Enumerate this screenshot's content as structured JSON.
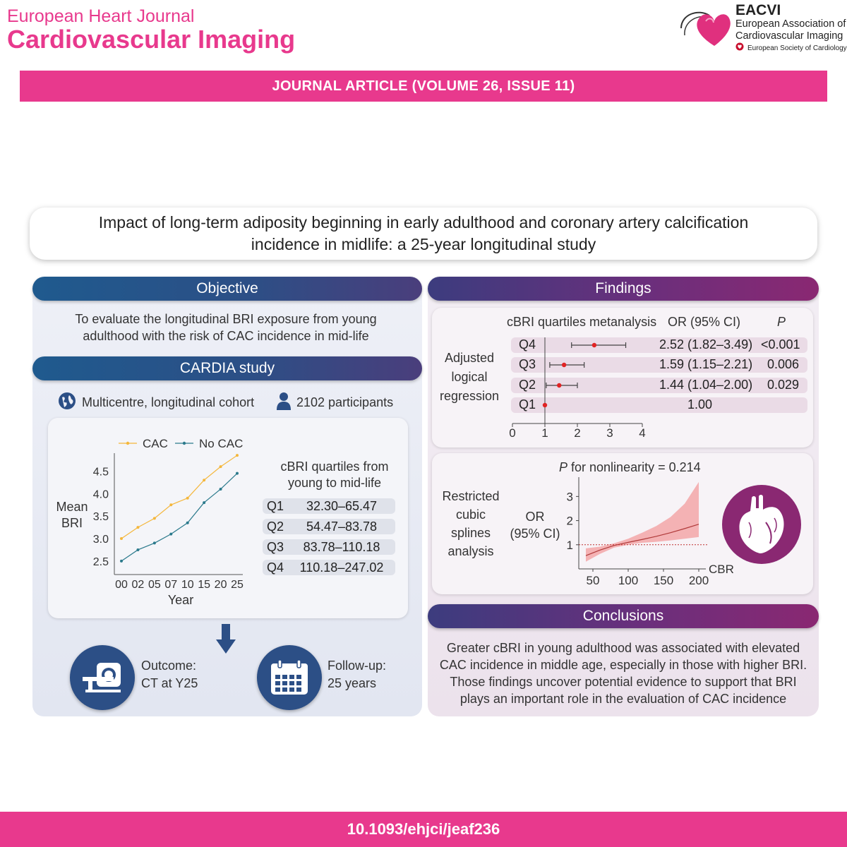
{
  "header": {
    "journal_name": "European Heart Journal",
    "journal_title": "Cardiovascular Imaging",
    "society_abbr": "EACVI",
    "society_name_line1": "European Association of",
    "society_name_line2": "Cardiovascular Imaging",
    "esc_name": "European Society of Cardiology",
    "banner": "JOURNAL ARTICLE (VOLUME 26, ISSUE 11)"
  },
  "title": {
    "line1": "Impact of long-term adiposity beginning in early adulthood and coronary artery calcification",
    "line2": "incidence in midlife: a 25-year longitudinal study"
  },
  "objective": {
    "heading": "Objective",
    "text_line1": "To evaluate the longitudinal BRI exposure from young",
    "text_line2": "adulthood with the risk of CAC incidence in mid-life"
  },
  "cardia": {
    "heading": "CARDIA study",
    "design": "Multicentre, longitudinal cohort",
    "participants": "2102 participants",
    "quartiles_heading_line1": "cBRI quartiles from",
    "quartiles_heading_line2": "young to mid-life",
    "quartiles": [
      {
        "q": "Q1",
        "range": "32.30–65.47"
      },
      {
        "q": "Q2",
        "range": "54.47–83.78"
      },
      {
        "q": "Q3",
        "range": "83.78–110.18"
      },
      {
        "q": "Q4",
        "range": "110.18–247.02"
      }
    ],
    "outcome_line1": "Outcome:",
    "outcome_line2": "CT at Y25",
    "followup_line1": "Follow-up:",
    "followup_line2": "25 years"
  },
  "findings": {
    "heading": "Findings",
    "forest_header": "cBRI quartiles metanalysis",
    "or_header": "OR (95% CI)",
    "p_header": "P",
    "section_label": [
      "Adjusted",
      "logical",
      "regression"
    ],
    "rows": [
      {
        "q": "Q4",
        "or_text": "2.52 (1.82–3.49)",
        "p": "<0.001"
      },
      {
        "q": "Q3",
        "or_text": "1.59 (1.15–2.21)",
        "p": "0.006"
      },
      {
        "q": "Q2",
        "or_text": "1.44 (1.04–2.00)",
        "p": "0.029"
      },
      {
        "q": "Q1",
        "or_text": "1.00",
        "p": ""
      }
    ],
    "spline_p_prefix": "P",
    "spline_p_text": " for nonlinearity = 0.214",
    "spline_label": [
      "Restricted",
      "cubic",
      "splines",
      "analysis"
    ],
    "spline_ylabel_line1": "OR",
    "spline_ylabel_line2": "(95% CI)",
    "spline_xlabel": "CBRI"
  },
  "conclusions": {
    "heading": "Conclusions",
    "line1": "Greater cBRI in young adulthood was associated with elevated",
    "line2": "CAC incidence in middle age, especially in those with higher BRI.",
    "line3": "Those findings uncover potential evidence to support that BRI",
    "line4": "plays an important role in the evaluation of CAC incidence"
  },
  "doi": "10.1093/ehjci/jeaf236",
  "colors": {
    "brand_pink": "#e8398d",
    "blue_bar": "#2c4f86",
    "purple_bar": "#8a2872",
    "cac_series": "#f4b73c",
    "nocac_series": "#2b7a8c",
    "forest_point": "#e02424",
    "spline_band": "#f3a6a8"
  },
  "chart_data": [
    {
      "type": "line",
      "x": [
        "00",
        "02",
        "05",
        "07",
        "10",
        "15",
        "20",
        "25"
      ],
      "xlabel": "Year",
      "ylabel": "Mean BRI",
      "ylim": [
        2.2,
        4.9
      ],
      "yticks": [
        "2.5",
        "3.0",
        "3.5",
        "4.0",
        "4.5"
      ],
      "legend": "top",
      "series": [
        {
          "name": "CAC",
          "values": [
            3.0,
            3.25,
            3.45,
            3.75,
            3.9,
            4.3,
            4.6,
            4.85
          ]
        },
        {
          "name": "No CAC",
          "values": [
            2.5,
            2.75,
            2.9,
            3.1,
            3.35,
            3.8,
            4.1,
            4.45
          ]
        }
      ]
    },
    {
      "type": "scatter",
      "title": "cBRI quartiles metanalysis",
      "categories": [
        "Q4",
        "Q3",
        "Q2",
        "Q1"
      ],
      "values": [
        2.52,
        1.59,
        1.44,
        1.0
      ],
      "ci_low": [
        1.82,
        1.15,
        1.04,
        1.0
      ],
      "ci_high": [
        3.49,
        2.21,
        2.0,
        1.0
      ],
      "xlim": [
        0,
        4
      ],
      "xticks": [
        "0",
        "1",
        "2",
        "3",
        "4"
      ]
    },
    {
      "type": "area",
      "title": "P for nonlinearity = 0.214",
      "xlabel": "CBRI",
      "ylabel": "OR (95% CI)",
      "xlim": [
        30,
        210
      ],
      "ylim": [
        0,
        3.8
      ],
      "xticks": [
        "50",
        "100",
        "150",
        "200"
      ],
      "yticks": [
        "1",
        "2",
        "3"
      ],
      "x": [
        40,
        60,
        80,
        100,
        120,
        140,
        160,
        180,
        200
      ],
      "or": [
        0.55,
        0.78,
        0.97,
        1.1,
        1.22,
        1.35,
        1.5,
        1.67,
        1.85
      ],
      "ci_low": [
        0.3,
        0.62,
        0.88,
        1.0,
        1.08,
        1.12,
        1.18,
        1.25,
        1.32
      ],
      "ci_high": [
        0.85,
        0.92,
        1.06,
        1.25,
        1.5,
        1.78,
        2.15,
        2.7,
        3.6
      ],
      "reference_line": 1
    }
  ]
}
